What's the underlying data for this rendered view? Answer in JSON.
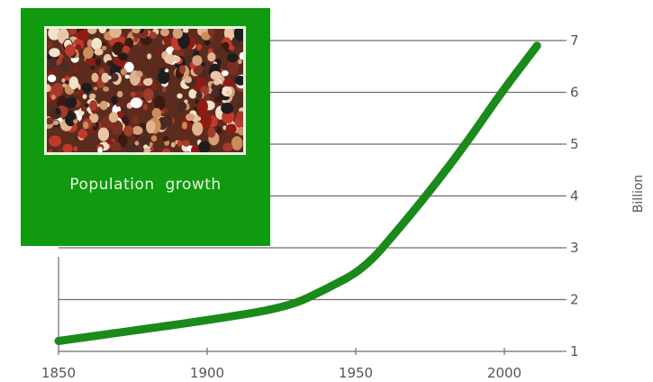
{
  "chart_data": {
    "type": "line",
    "title": "",
    "xlabel": "",
    "ylabel": "Billion",
    "x_ticks": [
      "1850",
      "1900",
      "1950",
      "2000"
    ],
    "y_ticks": [
      "1",
      "2",
      "3",
      "4",
      "5",
      "6",
      "7"
    ],
    "xlim": [
      1850,
      2010
    ],
    "ylim": [
      1,
      7
    ],
    "grid": "horizontal",
    "y_axis_side": "right",
    "series": [
      {
        "color": "#1a8a1a",
        "points": [
          [
            1850,
            1.2
          ],
          [
            1875,
            1.4
          ],
          [
            1900,
            1.6
          ],
          [
            1927,
            1.85
          ],
          [
            1940,
            2.2
          ],
          [
            1953,
            2.6
          ],
          [
            1965,
            3.4
          ],
          [
            1975,
            4.1
          ],
          [
            1987,
            5.0
          ],
          [
            1999,
            6.0
          ],
          [
            2011,
            6.9
          ]
        ]
      }
    ]
  },
  "inset": {
    "caption": "Population growth",
    "background_color": "#0f9a10",
    "image_description_icon": "crowd-photo"
  }
}
